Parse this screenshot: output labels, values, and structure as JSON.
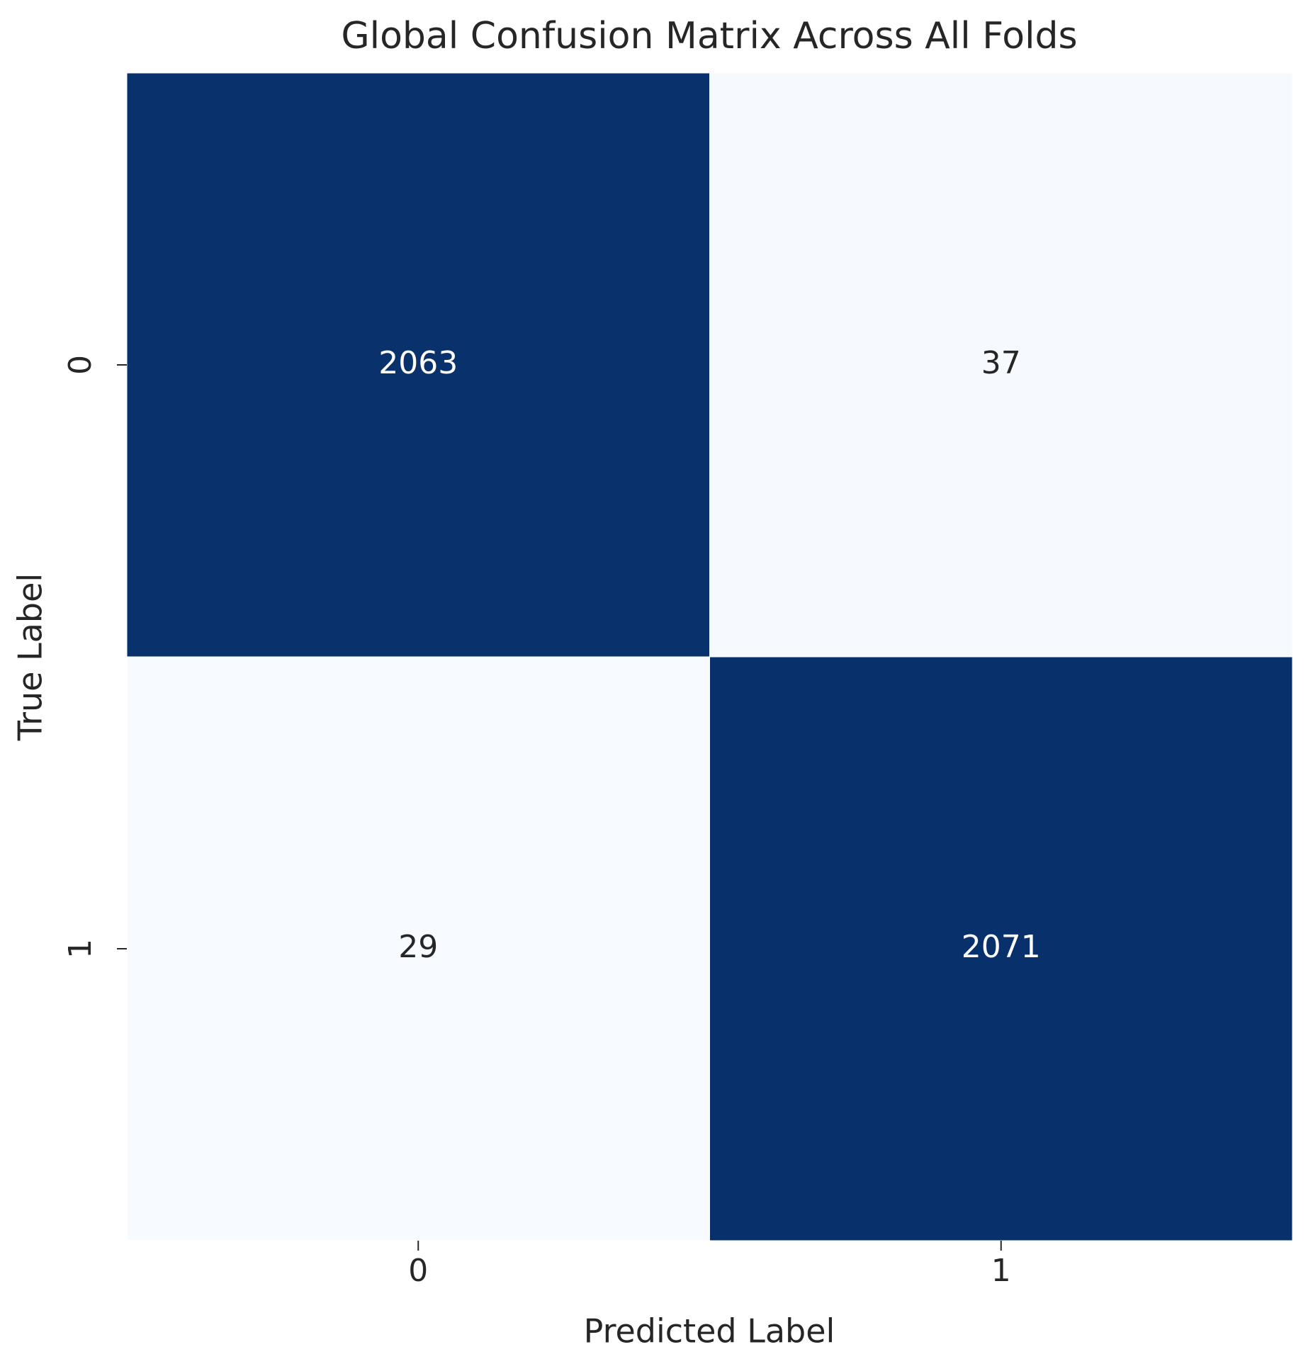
{
  "chart_data": {
    "type": "heatmap",
    "title": "Global Confusion Matrix Across All Folds",
    "x_label": "Predicted Label",
    "y_label": "True Label",
    "x_categories": [
      "0",
      "1"
    ],
    "y_categories": [
      "0",
      "1"
    ],
    "values": [
      [
        2063,
        37
      ],
      [
        29,
        2071
      ]
    ],
    "colormap": [
      "#f7fbff",
      "#08306b"
    ]
  }
}
